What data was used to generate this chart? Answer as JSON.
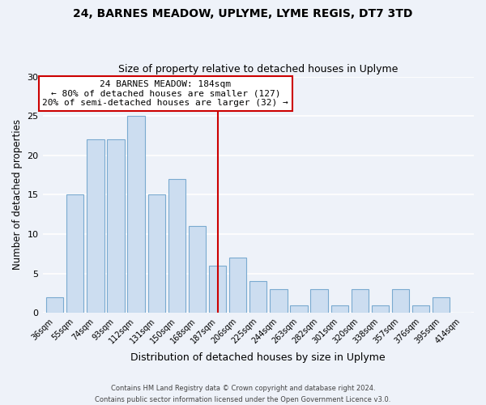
{
  "categories": [
    "36sqm",
    "55sqm",
    "74sqm",
    "93sqm",
    "112sqm",
    "131sqm",
    "150sqm",
    "168sqm",
    "187sqm",
    "206sqm",
    "225sqm",
    "244sqm",
    "263sqm",
    "282sqm",
    "301sqm",
    "320sqm",
    "338sqm",
    "357sqm",
    "376sqm",
    "395sqm",
    "414sqm"
  ],
  "values": [
    2,
    15,
    22,
    22,
    25,
    15,
    17,
    11,
    6,
    7,
    4,
    3,
    1,
    3,
    1,
    3,
    1,
    3,
    1,
    2,
    0
  ],
  "bar_color": "#ccddf0",
  "bar_edge_color": "#7aaad0",
  "title_line1": "24, BARNES MEADOW, UPLYME, LYME REGIS, DT7 3TD",
  "title_line2": "Size of property relative to detached houses in Uplyme",
  "xlabel": "Distribution of detached houses by size in Uplyme",
  "ylabel": "Number of detached properties",
  "ylim": [
    0,
    30
  ],
  "vline_x_index": 8,
  "vline_color": "#cc0000",
  "annotation_title": "24 BARNES MEADOW: 184sqm",
  "annotation_line1": "← 80% of detached houses are smaller (127)",
  "annotation_line2": "20% of semi-detached houses are larger (32) →",
  "annotation_box_color": "#ffffff",
  "annotation_box_edge": "#cc0000",
  "footer_line1": "Contains HM Land Registry data © Crown copyright and database right 2024.",
  "footer_line2": "Contains public sector information licensed under the Open Government Licence v3.0.",
  "background_color": "#eef2f9",
  "grid_color": "#ffffff",
  "yticks": [
    0,
    5,
    10,
    15,
    20,
    25,
    30
  ]
}
